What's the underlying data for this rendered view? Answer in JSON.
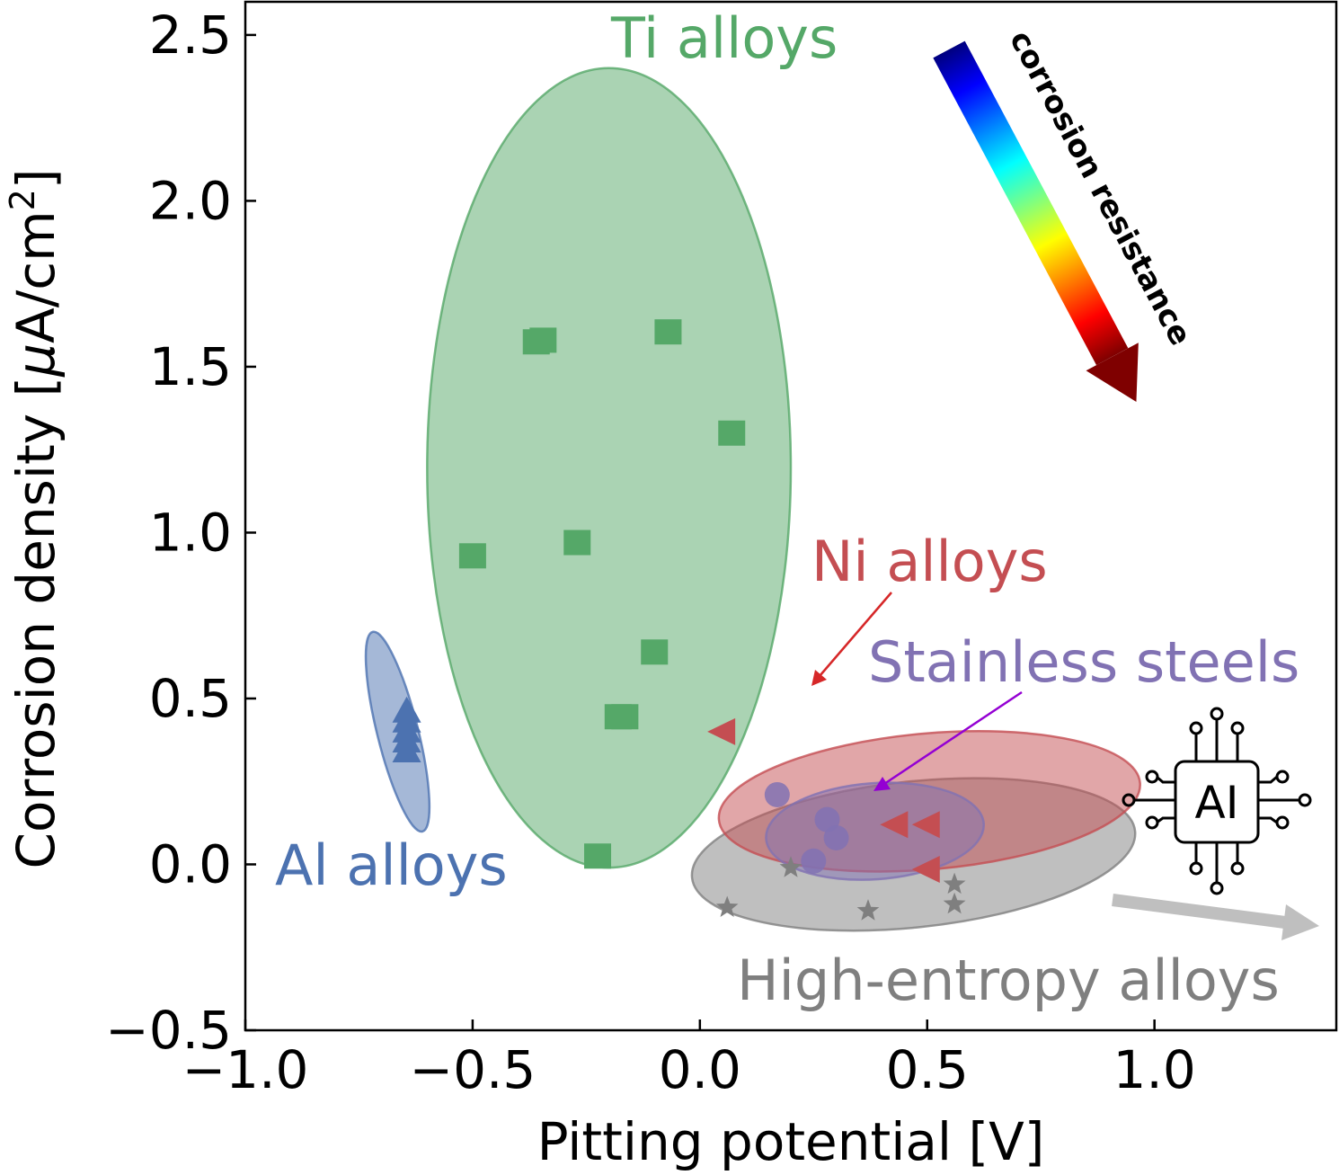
{
  "chart_data": {
    "type": "scatter",
    "xlabel": "Pitting potential [V]",
    "ylabel_main": "Corrosion density [",
    "ylabel_mu": "μ",
    "ylabel_unit": "A/cm",
    "ylabel_sup": "2",
    "ylabel_close": "]",
    "xlim": [
      -1.0,
      1.4
    ],
    "ylim": [
      -0.5,
      2.6
    ],
    "xticks": [
      -1.0,
      -0.5,
      0.0,
      0.5,
      1.0
    ],
    "xtick_labels": [
      "−1.0",
      "−0.5",
      "0.0",
      "0.5",
      "1.0"
    ],
    "yticks": [
      -0.5,
      0.0,
      0.5,
      1.0,
      1.5,
      2.0,
      2.5
    ],
    "ytick_labels": [
      "−0.5",
      "0.0",
      "0.5",
      "1.0",
      "1.5",
      "2.0",
      "2.5"
    ],
    "grid": false,
    "series": [
      {
        "name": "Ti alloys",
        "marker": "square",
        "color": "#55a868",
        "points": [
          [
            -0.36,
            1.575
          ],
          [
            -0.345,
            1.58
          ],
          [
            -0.07,
            1.605
          ],
          [
            0.07,
            1.3
          ],
          [
            -0.27,
            0.97
          ],
          [
            -0.5,
            0.93
          ],
          [
            -0.1,
            0.64
          ],
          [
            -0.165,
            0.445
          ],
          [
            -0.18,
            0.445
          ],
          [
            -0.225,
            0.025
          ]
        ],
        "region": {
          "cx": -0.2,
          "cy": 1.195,
          "rx": 0.4,
          "ry": 1.205,
          "angle": 0
        }
      },
      {
        "name": "Ni alloys",
        "marker": "triangle-left",
        "color": "#c44e52",
        "points": [
          [
            0.05,
            0.4
          ],
          [
            0.43,
            0.12
          ],
          [
            0.5,
            0.12
          ],
          [
            0.5,
            -0.015
          ]
        ],
        "region": {
          "cx": 0.505,
          "cy": 0.19,
          "rx": 0.465,
          "ry": 0.205,
          "angle": -5
        }
      },
      {
        "name": "Stainless steels",
        "marker": "circle",
        "color": "#8172b3",
        "points": [
          [
            0.17,
            0.21
          ],
          [
            0.28,
            0.135
          ],
          [
            0.3,
            0.08
          ],
          [
            0.25,
            0.01
          ]
        ],
        "region": {
          "cx": 0.385,
          "cy": 0.1,
          "rx": 0.24,
          "ry": 0.145,
          "angle": -4
        }
      },
      {
        "name": "High-entropy alloys",
        "marker": "star",
        "color": "#7f7f7f",
        "points": [
          [
            0.2,
            -0.01
          ],
          [
            0.06,
            -0.13
          ],
          [
            0.37,
            -0.14
          ],
          [
            0.56,
            -0.06
          ],
          [
            0.56,
            -0.12
          ]
        ],
        "region": {
          "cx": 0.47,
          "cy": 0.03,
          "rx": 0.49,
          "ry": 0.22,
          "angle": -6
        }
      },
      {
        "name": "Al alloys",
        "marker": "triangle-up",
        "color": "#4c72b0",
        "points": [
          [
            -0.645,
            0.46
          ],
          [
            -0.645,
            0.43
          ],
          [
            -0.645,
            0.4
          ],
          [
            -0.645,
            0.37
          ],
          [
            -0.645,
            0.34
          ]
        ],
        "region": {
          "cx": -0.665,
          "cy": 0.4,
          "rx": 0.045,
          "ry": 0.31,
          "angle": -14
        }
      }
    ],
    "annotations": {
      "corrosion_arrow_label": "corrosion resistance",
      "ai_icon_label": "AI",
      "ni_arrow_color": "#d62728",
      "ss_arrow_color": "#9400d3",
      "hea_arrow_color": "#bfbfbf"
    }
  }
}
